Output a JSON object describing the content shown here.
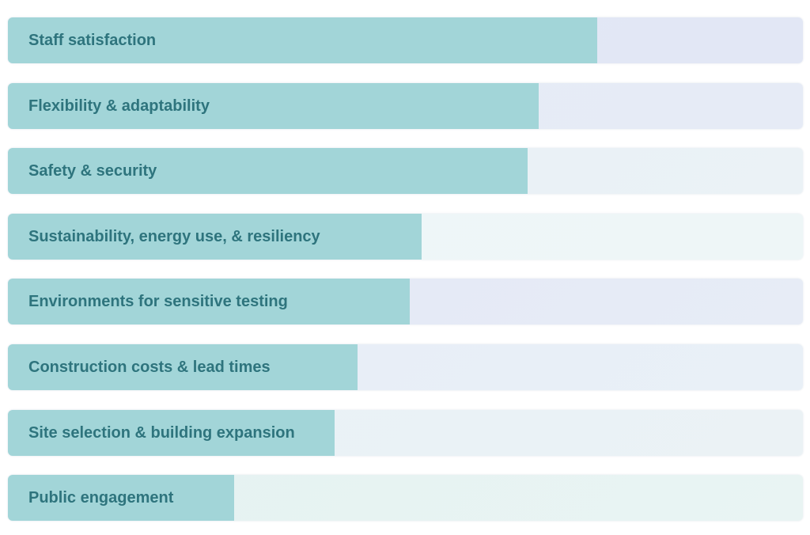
{
  "chart_data": {
    "type": "bar",
    "orientation": "horizontal",
    "title": "",
    "xlabel": "",
    "ylabel": "",
    "categories": [
      "Staff satisfaction",
      "Flexibility & adaptability",
      "Safety & security",
      "Sustainability, energy use, & resiliency",
      "Environments for sensitive testing",
      "Construction costs & lead times",
      "Site selection & building expansion",
      "Public engagement"
    ],
    "values": [
      74.1,
      66.8,
      65.4,
      52.0,
      50.5,
      44.0,
      41.1,
      28.5
    ],
    "value_unit": "percent of track width",
    "xlim": [
      0,
      100
    ],
    "grid": false,
    "legend": false,
    "data_labels": false,
    "axis_ticks_visible": false
  },
  "style": {
    "background_color": "#ffffff",
    "bar_fill_color": "#a2d5d8",
    "label_color": "#2e747d",
    "track_gradients": [
      [
        "#e2e8f6",
        "#e2e7f5"
      ],
      [
        "#e6ecf7",
        "#e6ebf6"
      ],
      [
        "#e8eff7",
        "#ebf2f6"
      ],
      [
        "#edf5f8",
        "#eef6f7"
      ],
      [
        "#e3e8f5",
        "#e7ecf6"
      ],
      [
        "#e7edf7",
        "#e9f0f7"
      ],
      [
        "#e9f1f7",
        "#ebf2f5"
      ],
      [
        "#e5f2f2",
        "#e9f4f3"
      ]
    ]
  }
}
